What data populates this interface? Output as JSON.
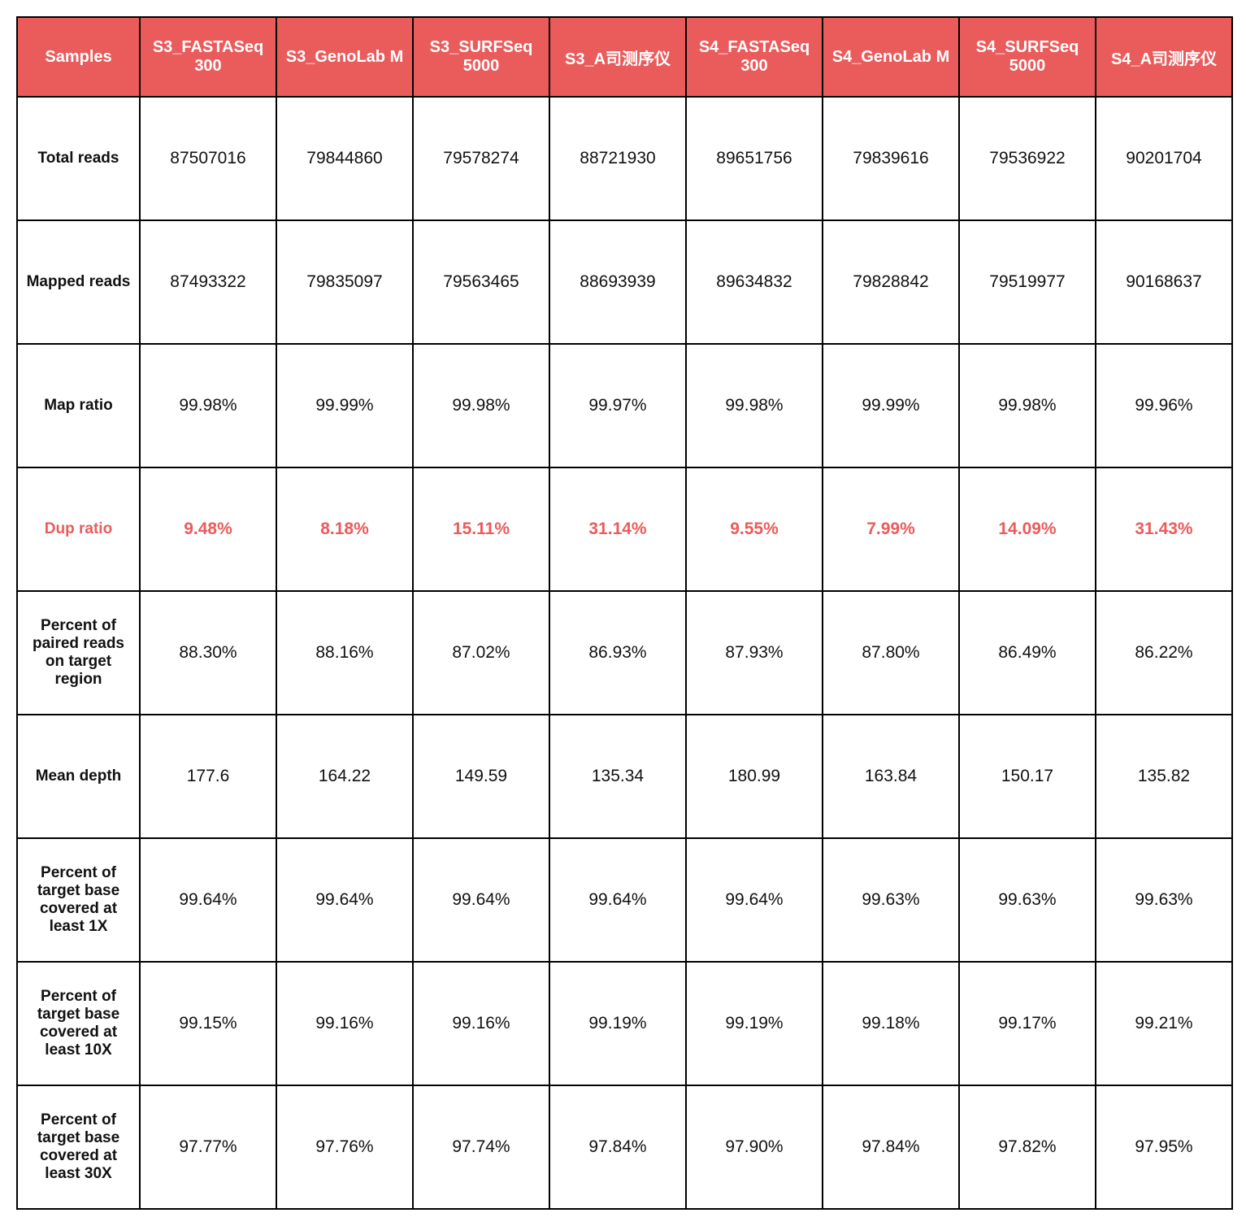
{
  "table": {
    "header_bg": "#ea5b5b",
    "header_fg": "#ffffff",
    "highlight_color": "#ea5b5b",
    "border_color": "#000000",
    "font_family": "Segoe UI, Arial, Microsoft YaHei, sans-serif",
    "header_fontsize_pt": 15,
    "cell_fontsize_pt": 16,
    "rowhead_fontsize_pt": 14,
    "columns": [
      "Samples",
      "S3_FASTASeq 300",
      "S3_GenoLab M",
      "S3_SURFSeq 5000",
      "S3_A司测序仪",
      "S4_FASTASeq 300",
      "S4_GenoLab M",
      "S4_SURFSeq 5000",
      "S4_A司测序仪"
    ],
    "rows": [
      {
        "label": "Total reads",
        "highlight": false,
        "cells": [
          "87507016",
          "79844860",
          "79578274",
          "88721930",
          "89651756",
          "79839616",
          "79536922",
          "90201704"
        ]
      },
      {
        "label": "Mapped reads",
        "highlight": false,
        "cells": [
          "87493322",
          "79835097",
          "79563465",
          "88693939",
          "89634832",
          "79828842",
          "79519977",
          "90168637"
        ]
      },
      {
        "label": "Map ratio",
        "highlight": false,
        "cells": [
          "99.98%",
          "99.99%",
          "99.98%",
          "99.97%",
          "99.98%",
          "99.99%",
          "99.98%",
          "99.96%"
        ]
      },
      {
        "label": "Dup ratio",
        "highlight": true,
        "cells": [
          "9.48%",
          "8.18%",
          "15.11%",
          "31.14%",
          "9.55%",
          "7.99%",
          "14.09%",
          "31.43%"
        ]
      },
      {
        "label": "Percent of paired reads on target region",
        "highlight": false,
        "cells": [
          "88.30%",
          "88.16%",
          "87.02%",
          "86.93%",
          "87.93%",
          "87.80%",
          "86.49%",
          "86.22%"
        ]
      },
      {
        "label": "Mean depth",
        "highlight": false,
        "cells": [
          "177.6",
          "164.22",
          "149.59",
          "135.34",
          "180.99",
          "163.84",
          "150.17",
          "135.82"
        ]
      },
      {
        "label": "Percent of target base covered at least 1X",
        "highlight": false,
        "cells": [
          "99.64%",
          "99.64%",
          "99.64%",
          "99.64%",
          "99.64%",
          "99.63%",
          "99.63%",
          "99.63%"
        ]
      },
      {
        "label": "Percent of target base covered at least 10X",
        "highlight": false,
        "cells": [
          "99.15%",
          "99.16%",
          "99.16%",
          "99.19%",
          "99.19%",
          "99.18%",
          "99.17%",
          "99.21%"
        ]
      },
      {
        "label": "Percent of target base covered at least 30X",
        "highlight": false,
        "cells": [
          "97.77%",
          "97.76%",
          "97.74%",
          "97.84%",
          "97.90%",
          "97.84%",
          "97.82%",
          "97.95%"
        ]
      }
    ]
  }
}
